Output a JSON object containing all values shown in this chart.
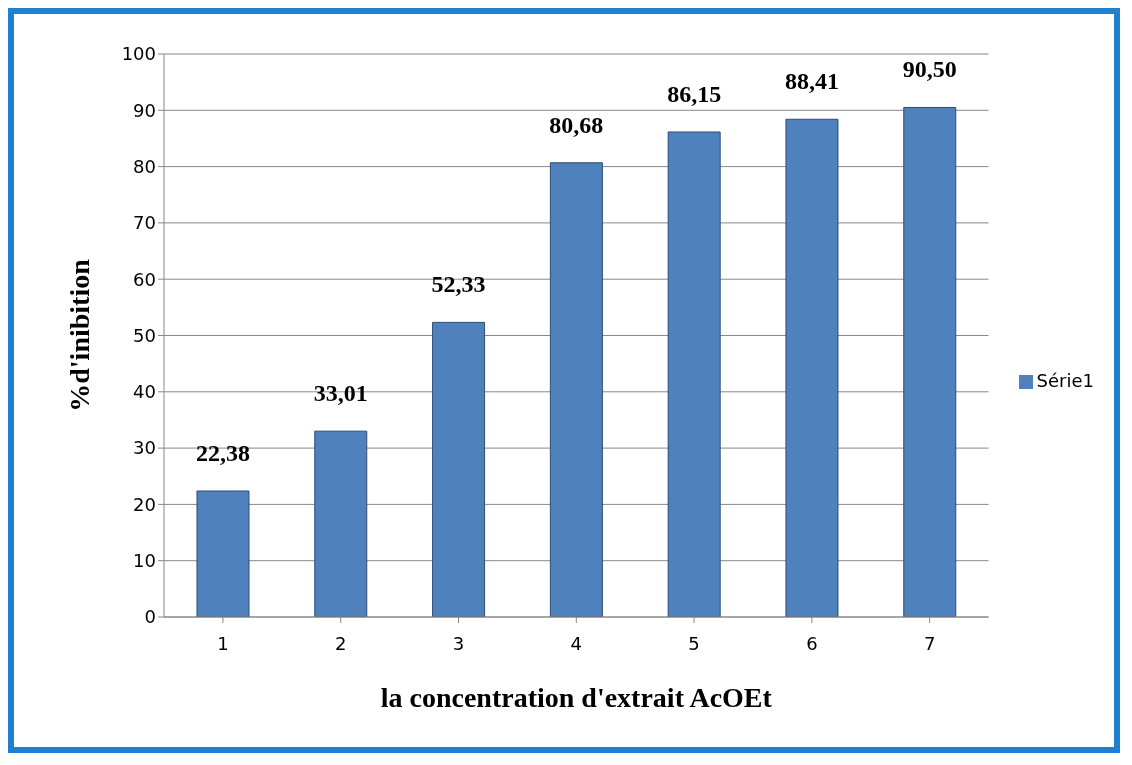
{
  "chart_data": {
    "type": "bar",
    "xlabel": "la concentration d'extrait AcOEt",
    "ylabel": "%d'inibition",
    "categories": [
      "1",
      "2",
      "3",
      "4",
      "5",
      "6",
      "7"
    ],
    "series": [
      {
        "name": "Série1",
        "color": "#4f81bd",
        "values": [
          22.38,
          33.01,
          52.33,
          80.68,
          86.15,
          88.41,
          90.5
        ],
        "value_labels": [
          "22,38",
          "33,01",
          "52,33",
          "80,68",
          "86,15",
          "88,41",
          "90,50"
        ]
      }
    ],
    "ylim": [
      0,
      100
    ],
    "yticks": [
      0,
      10,
      20,
      30,
      40,
      50,
      60,
      70,
      80,
      90,
      100
    ],
    "grid": "y",
    "legend": "right"
  }
}
